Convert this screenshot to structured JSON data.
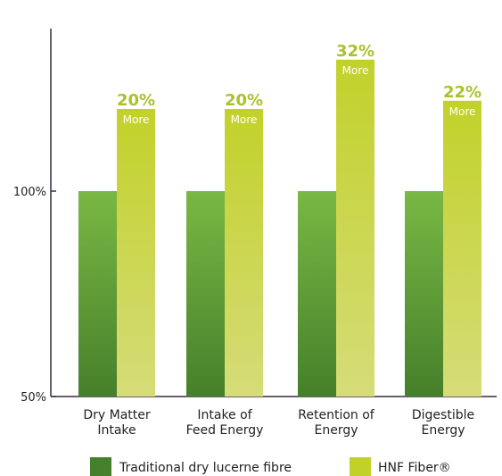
{
  "chart_data": {
    "type": "bar",
    "categories": [
      [
        "Dry Matter",
        "Intake"
      ],
      [
        "Intake of",
        "Feed Energy"
      ],
      [
        "Retention of",
        "Energy"
      ],
      [
        "Digestible",
        "Energy"
      ]
    ],
    "series": [
      {
        "name": "Traditional dry lucerne fibre",
        "values": [
          100,
          100,
          100,
          100
        ]
      },
      {
        "name": "HNF Fiber®",
        "values": [
          120,
          120,
          132,
          122
        ]
      }
    ],
    "annotations": [
      {
        "percent": "20%",
        "label": "More"
      },
      {
        "percent": "20%",
        "label": "More"
      },
      {
        "percent": "32%",
        "label": "More"
      },
      {
        "percent": "22%",
        "label": "More"
      }
    ],
    "y_ticks": [
      {
        "value": 50,
        "label": "50%"
      },
      {
        "value": 100,
        "label": "100%"
      }
    ],
    "ylim": [
      50,
      150
    ],
    "grid": false,
    "legend_position": "bottom",
    "colors": {
      "traditional_top": "#79b844",
      "traditional_bottom": "#45802a",
      "hnf_top": "#c2d12a",
      "hnf_bottom": "#d6dc78",
      "annotation": "#a9c22c"
    }
  }
}
